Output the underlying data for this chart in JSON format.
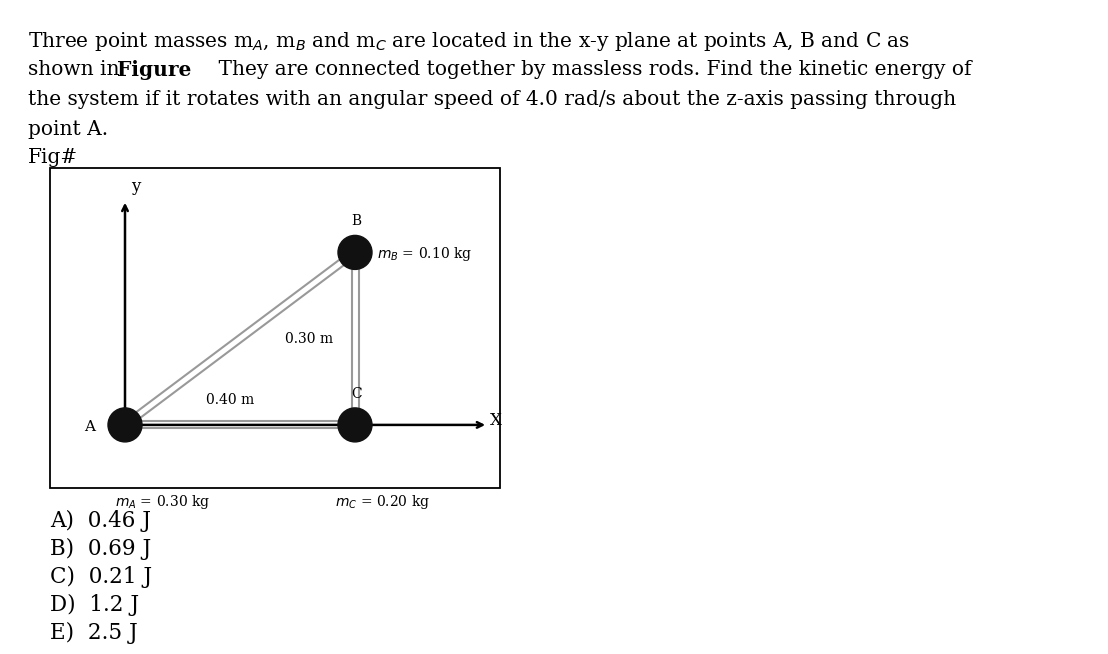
{
  "point_A": [
    0.0,
    0.0
  ],
  "point_B": [
    0.4,
    0.3
  ],
  "point_C": [
    0.4,
    0.0
  ],
  "dot_color": "#111111",
  "rod_color": "#aaaaaa",
  "bg_color": "#ffffff",
  "answers": [
    "A)  0.46 J",
    "B)  0.69 J",
    "C)  0.21 J",
    "D)  1.2 J",
    "E)  2.5 J"
  ],
  "line1": "Three point masses m$_A$, m$_B$ and m$_C$ are located in the x-y plane at points A, B and C as",
  "line2": "shown in **Figure**    They are connected together by massless rods. Find the kinetic energy of",
  "line3": "the system if it rotates with an angular speed of 4.0 rad/s about the z-axis passing through",
  "line4": "point A.",
  "fig_label": "Fig#"
}
